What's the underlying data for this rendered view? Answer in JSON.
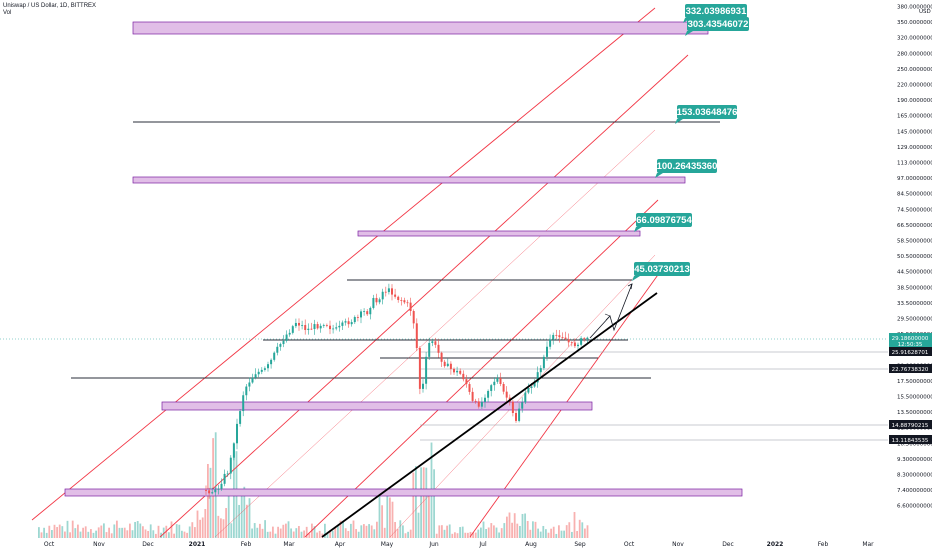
{
  "header": {
    "title": "Uniswap / US Dollar, 1D, BITTREX",
    "sub": "Vol"
  },
  "chart_data": {
    "type": "candlestick",
    "axis": {
      "currency": "USD",
      "ticks": [
        "380.000000000",
        "350.000000000",
        "320.000000000",
        "280.000000000",
        "250.000000000",
        "220.000000000",
        "190.000000000",
        "165.000000000",
        "145.000000000",
        "129.000000000",
        "113.000000000",
        "97.000000000",
        "84.500000000",
        "74.500000000",
        "66.500000000",
        "58.500000000",
        "50.500000000",
        "44.500000000",
        "38.500000000",
        "33.500000000",
        "29.500000000",
        "25.500000000",
        "22.500000000",
        "20.000000000",
        "17.500000000",
        "15.500000000",
        "13.500000000",
        "11.900000000",
        "10.500000000",
        "9.300000000",
        "8.300000000",
        "7.400000000",
        "6.600000000"
      ],
      "months": [
        "Oct",
        "Nov",
        "Dec",
        "2021",
        "Feb",
        "Mar",
        "Apr",
        "May",
        "Jun",
        "Jul",
        "Aug",
        "Sep",
        "Oct",
        "Nov",
        "Dec",
        "2022",
        "Feb",
        "Mar"
      ]
    },
    "price_labels": [
      {
        "text": "29.18600000",
        "sub": "12:50:35",
        "color": "#26a69a"
      },
      {
        "text": "25.91628701",
        "color": "#131722"
      },
      {
        "text": "22.76738320",
        "color": "#131722"
      },
      {
        "text": "14.88790215",
        "color": "#131722"
      },
      {
        "text": "13.11843535",
        "color": "#131722"
      }
    ],
    "targets": [
      "332.03986931",
      "303.43546072",
      "153.03648476",
      "100.26435360",
      "66.09876754",
      "45.03730213"
    ],
    "colors": {
      "up": "#26a69a",
      "down": "#ef5350",
      "zone": "#e1bee7",
      "zone_border": "#7b1fa2",
      "channel": "#f23645",
      "trend": "#000000",
      "level": "#2a2e39"
    }
  }
}
